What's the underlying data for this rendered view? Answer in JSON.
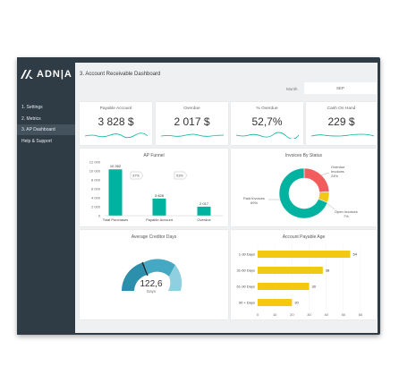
{
  "app": {
    "logo_text": "ADN|A"
  },
  "sidebar": {
    "items": [
      {
        "label": "1. Settings"
      },
      {
        "label": "2. Metrics"
      },
      {
        "label": "3. AP Dashboard"
      },
      {
        "label": "Help & Support"
      }
    ]
  },
  "header": {
    "title": "3. Account Receivable Dashboard",
    "month_label": "Month",
    "month_value": "SEP"
  },
  "kpis": [
    {
      "label": "Payable Account",
      "value": "3 828 $"
    },
    {
      "label": "Overdue",
      "value": "2 017 $"
    },
    {
      "label": "% Overdue",
      "value": "52,7%"
    },
    {
      "label": "Cash On Hand",
      "value": "229 $"
    }
  ],
  "colors": {
    "teal": "#00b2a0",
    "red": "#f25c5c",
    "yellow": "#f2c811",
    "gauge_dark": "#2c8fab",
    "gauge_light": "#8ed0e0"
  },
  "funnel": {
    "title": "AP Funnel"
  },
  "status": {
    "title": "Invoices By Status"
  },
  "gauge": {
    "title": "Average Creditor Days",
    "value": "122,6",
    "unit": "Days"
  },
  "age": {
    "title": "Account Payable Age"
  },
  "chart_data": [
    {
      "type": "bar",
      "title": "AP Funnel",
      "categories": [
        "Total Purchases",
        "Payable Account",
        "Overdue"
      ],
      "values": [
        10352,
        3828,
        2017
      ],
      "value_labels": [
        "10 352",
        "3 828",
        "2 017"
      ],
      "conversion_labels": [
        "37%",
        "53%"
      ],
      "ylim": [
        0,
        12000
      ],
      "yticks": [
        "0",
        "2 000",
        "4 000",
        "6 000",
        "8 000",
        "10 000",
        "12 000"
      ]
    },
    {
      "type": "pie",
      "title": "Invoices By Status",
      "slices": [
        {
          "label_line1": "Overdue",
          "label_line2": "Invoices",
          "pct_label": "24%",
          "value": 24,
          "color": "#f25c5c"
        },
        {
          "label_line1": "Open Invoices",
          "label_line2": "",
          "pct_label": "7%",
          "value": 7,
          "color": "#f2c811"
        },
        {
          "label_line1": "Paid Invoices",
          "label_line2": "",
          "pct_label": "69%",
          "value": 69,
          "color": "#00b2a0"
        }
      ]
    },
    {
      "type": "bar",
      "title": "Account Payable Age",
      "orientation": "horizontal",
      "categories": [
        "1-30 Days",
        "31-60 Days",
        "61-90 Days",
        "90 + Days"
      ],
      "values": [
        54,
        38,
        30,
        20
      ],
      "xlim": [
        0,
        60
      ],
      "xticks": [
        "0",
        "10",
        "20",
        "30",
        "40",
        "50",
        "60"
      ]
    }
  ]
}
